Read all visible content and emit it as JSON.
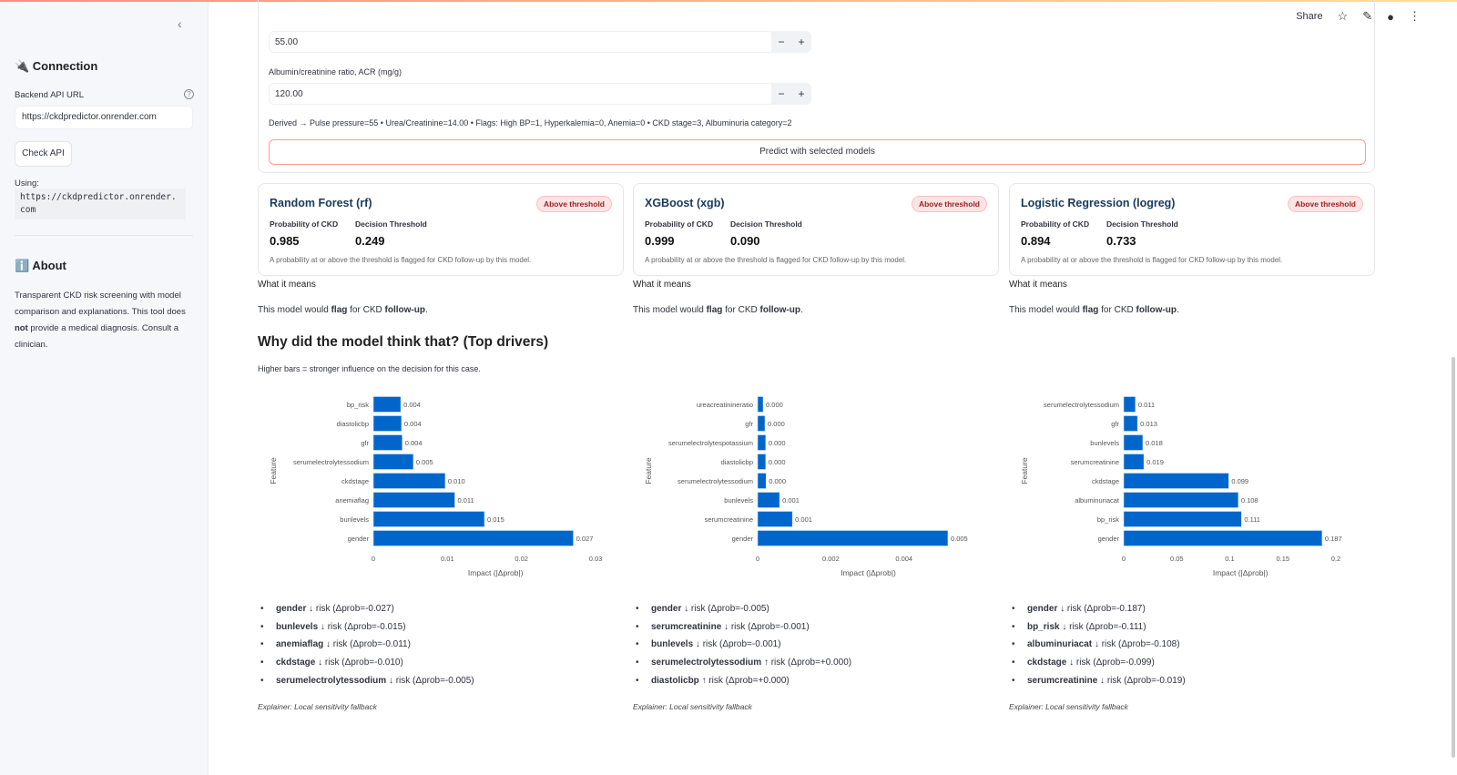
{
  "sidebar": {
    "connection_title": "🔌 Connection",
    "api_label": "Backend API URL",
    "api_value": "https://ckdpredictor.onrender.com",
    "check_btn": "Check API",
    "using_label": "Using:",
    "using_value": "https://ckdpredictor.onrender.com",
    "about_title": "ℹ️ About",
    "about_pre": "Transparent CKD risk screening with model comparison and explanations. This tool does ",
    "about_bold": "not",
    "about_post": " provide a medical diagnosis. Consult a clinician."
  },
  "header": {
    "share": "Share"
  },
  "form": {
    "field1_value": "55.00",
    "field2_label": "Albumin/creatinine ratio, ACR (mg/g)",
    "field2_value": "120.00",
    "derived": "Derived → Pulse pressure=55 • Urea/Creatinine=14.00 • Flags: High BP=1, Hyperkalemia=0, Anemia=0 • CKD stage=3, Albuminuria category=2",
    "predict_btn": "Predict with selected models"
  },
  "models": [
    {
      "title": "Random Forest (rf)",
      "badge": "Above threshold",
      "prob_label": "Probability of CKD",
      "prob": "0.985",
      "thr_label": "Decision Threshold",
      "thr": "0.249",
      "note": "A probability at or above the threshold is flagged for CKD follow-up by this model.",
      "means": "What it means",
      "flag_pre": "This model would ",
      "flag_b1": "flag",
      "flag_mid": " for CKD ",
      "flag_b2": "follow-up",
      "flag_post": ".",
      "drivers": [
        {
          "f": "gender",
          "t": " ↓ risk (Δprob=-0.027)"
        },
        {
          "f": "bunlevels",
          "t": " ↓ risk (Δprob=-0.015)"
        },
        {
          "f": "anemiaflag",
          "t": " ↓ risk (Δprob=-0.011)"
        },
        {
          "f": "ckdstage",
          "t": " ↓ risk (Δprob=-0.010)"
        },
        {
          "f": "serumelectrolytessodium",
          "t": " ↓ risk (Δprob=-0.005)"
        }
      ],
      "explainer": "Explainer: Local sensitivity fallback"
    },
    {
      "title": "XGBoost (xgb)",
      "badge": "Above threshold",
      "prob_label": "Probability of CKD",
      "prob": "0.999",
      "thr_label": "Decision Threshold",
      "thr": "0.090",
      "note": "A probability at or above the threshold is flagged for CKD follow-up by this model.",
      "means": "What it means",
      "flag_pre": "This model would ",
      "flag_b1": "flag",
      "flag_mid": " for CKD ",
      "flag_b2": "follow-up",
      "flag_post": ".",
      "drivers": [
        {
          "f": "gender",
          "t": " ↓ risk (Δprob=-0.005)"
        },
        {
          "f": "serumcreatinine",
          "t": " ↓ risk (Δprob=-0.001)"
        },
        {
          "f": "bunlevels",
          "t": " ↓ risk (Δprob=-0.001)"
        },
        {
          "f": "serumelectrolytessodium",
          "t": " ↑ risk (Δprob=+0.000)"
        },
        {
          "f": "diastolicbp",
          "t": " ↑ risk (Δprob=+0.000)"
        }
      ],
      "explainer": "Explainer: Local sensitivity fallback"
    },
    {
      "title": "Logistic Regression (logreg)",
      "badge": "Above threshold",
      "prob_label": "Probability of CKD",
      "prob": "0.894",
      "thr_label": "Decision Threshold",
      "thr": "0.733",
      "note": "A probability at or above the threshold is flagged for CKD follow-up by this model.",
      "means": "What it means",
      "flag_pre": "This model would ",
      "flag_b1": "flag",
      "flag_mid": " for CKD ",
      "flag_b2": "follow-up",
      "flag_post": ".",
      "drivers": [
        {
          "f": "gender",
          "t": " ↓ risk (Δprob=-0.187)"
        },
        {
          "f": "bp_risk",
          "t": " ↓ risk (Δprob=-0.111)"
        },
        {
          "f": "albuminuriacat",
          "t": " ↓ risk (Δprob=-0.108)"
        },
        {
          "f": "ckdstage",
          "t": " ↓ risk (Δprob=-0.099)"
        },
        {
          "f": "serumcreatinine",
          "t": " ↓ risk (Δprob=-0.019)"
        }
      ],
      "explainer": "Explainer: Local sensitivity fallback"
    }
  ],
  "drivers_section": {
    "title": "Why did the model think that? (Top drivers)",
    "subtitle": "Higher bars = stronger influence on the decision for this case."
  },
  "chart_data": [
    {
      "type": "bar",
      "orientation": "horizontal",
      "xlabel": "Impact (|Δprob|)",
      "ylabel": "Feature",
      "xlim": [
        0,
        0.03
      ],
      "ticks": [
        "0",
        "0.01",
        "0.02",
        "0.03"
      ],
      "tick_values": [
        0,
        0.01,
        0.02,
        0.03
      ],
      "color": "#0066cc",
      "categories": [
        "bp_risk",
        "diastolicbp",
        "gfr",
        "serumelectrolytessodium",
        "ckdstage",
        "anemiaflag",
        "bunlevels",
        "gender"
      ],
      "values": [
        0.0037,
        0.0038,
        0.0039,
        0.0054,
        0.0097,
        0.011,
        0.015,
        0.027
      ],
      "labels": [
        "0.004",
        "0.004",
        "0.004",
        "0.005",
        "0.010",
        "0.011",
        "0.015",
        "0.027"
      ]
    },
    {
      "type": "bar",
      "orientation": "horizontal",
      "xlabel": "Impact (|Δprob|)",
      "ylabel": "Feature",
      "xlim": [
        0,
        0.0055
      ],
      "ticks": [
        "0",
        "0.002",
        "0.004"
      ],
      "tick_values": [
        0,
        0.002,
        0.004
      ],
      "color": "#0066cc",
      "categories": [
        "ureacreatinineratio",
        "gfr",
        "serumelectrolytespotassium",
        "diastolicbp",
        "serumelectrolytessodium",
        "bunlevels",
        "serumcreatinine",
        "gender"
      ],
      "values": [
        0.00015,
        0.0002,
        0.00022,
        0.00022,
        0.00023,
        0.0006,
        0.00095,
        0.0052
      ],
      "labels": [
        "0.000",
        "0.000",
        "0.000",
        "0.000",
        "0.000",
        "0.001",
        "0.001",
        "0.005"
      ]
    },
    {
      "type": "bar",
      "orientation": "horizontal",
      "xlabel": "Impact (|Δprob|)",
      "ylabel": "Feature",
      "xlim": [
        0,
        0.2
      ],
      "ticks": [
        "0",
        "0.05",
        "0.1",
        "0.15",
        "0.2"
      ],
      "tick_values": [
        0,
        0.05,
        0.1,
        0.15,
        0.2
      ],
      "color": "#0066cc",
      "categories": [
        "serumelectrolytessodium",
        "gfr",
        "bunlevels",
        "serumcreatinine",
        "ckdstage",
        "albuminuriacat",
        "bp_risk",
        "gender"
      ],
      "values": [
        0.011,
        0.013,
        0.018,
        0.019,
        0.099,
        0.108,
        0.111,
        0.187
      ],
      "labels": [
        "0.011",
        "0.013",
        "0.018",
        "0.019",
        "0.099",
        "0.108",
        "0.111",
        "0.187"
      ]
    }
  ]
}
